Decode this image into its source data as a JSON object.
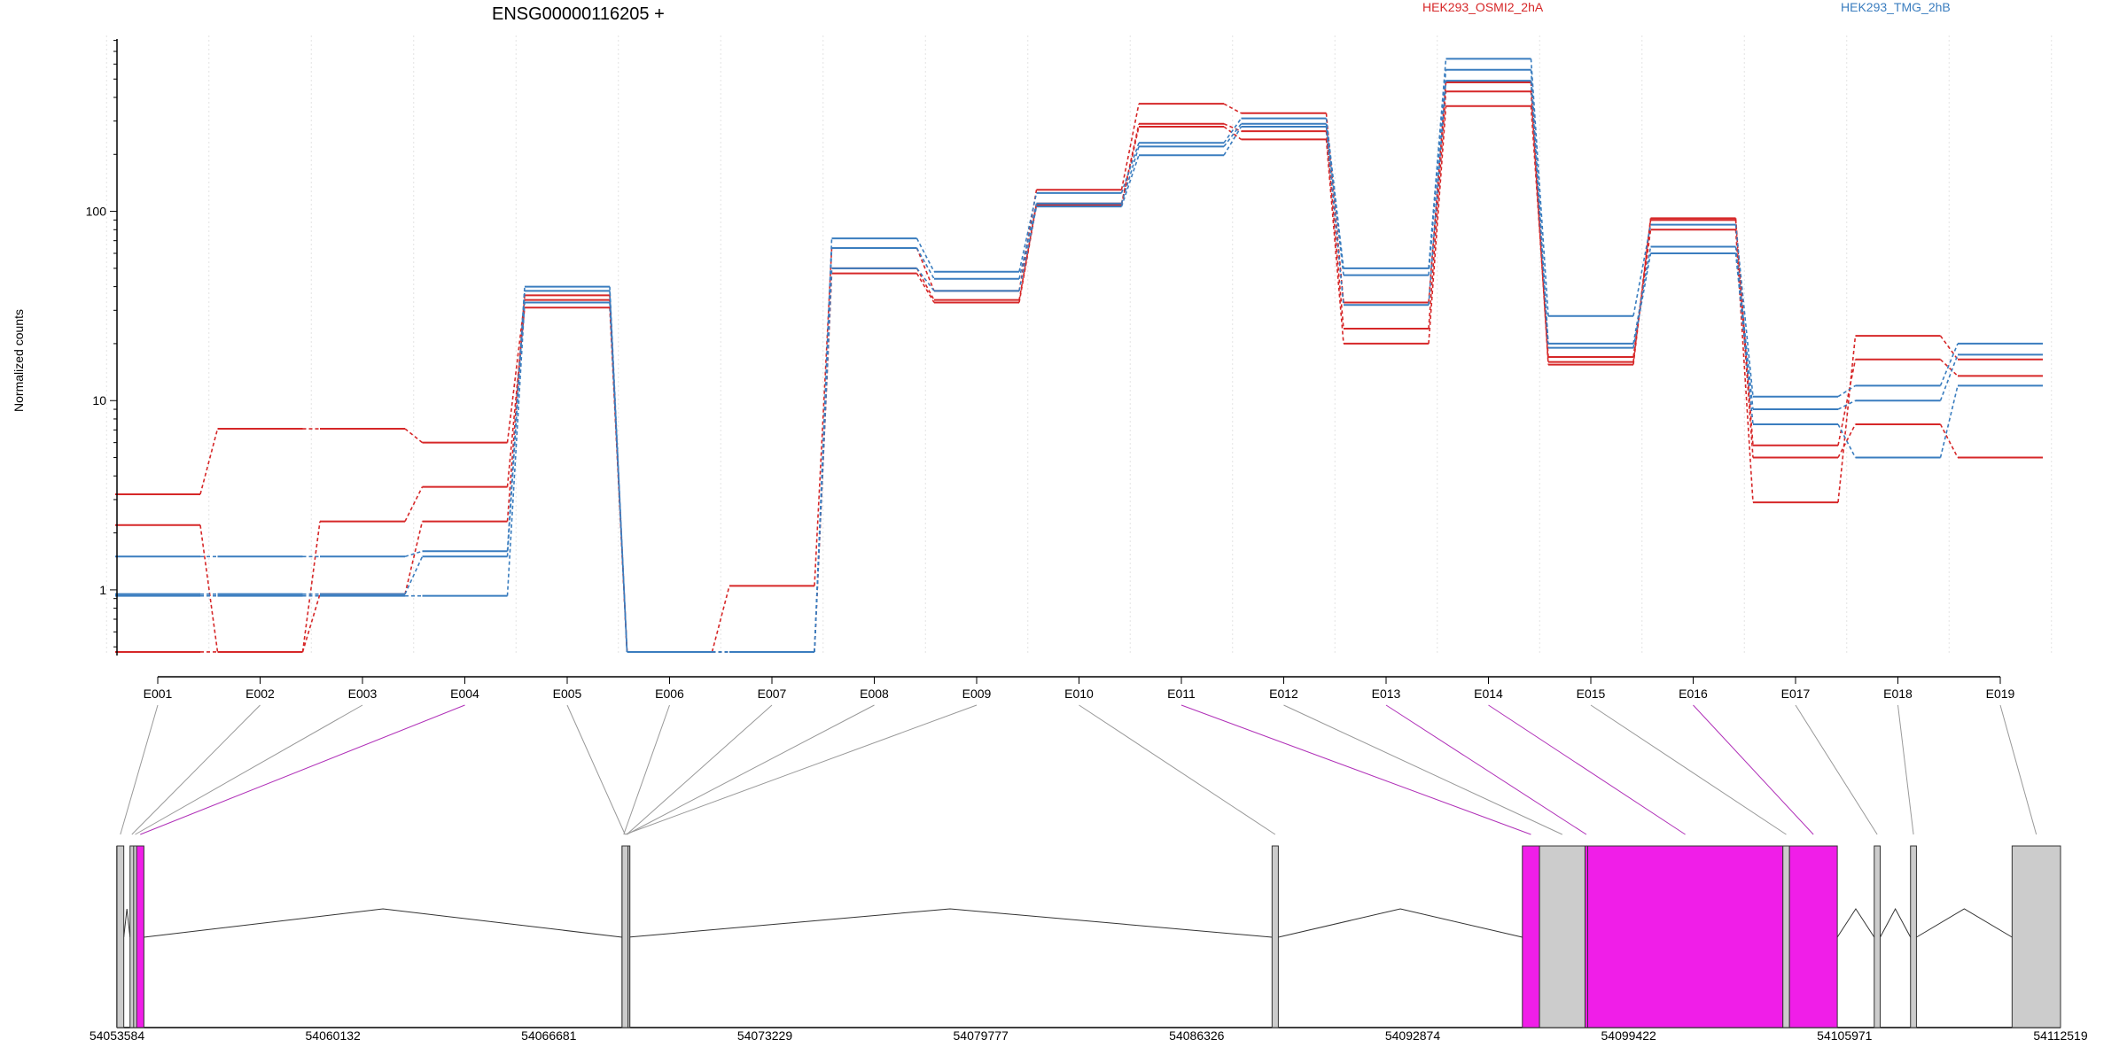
{
  "chart_data": {
    "type": "line",
    "title": "ENSG00000116205 +",
    "ylabel": "Normalized counts",
    "xlabel": "",
    "y_scale": "log",
    "ylim": [
      0.45,
      850
    ],
    "y_ticks": [
      {
        "value": 1,
        "label": "1"
      },
      {
        "value": 10,
        "label": "10"
      },
      {
        "value": 100,
        "label": "100"
      }
    ],
    "grid": "vertical dotted lines at bin boundaries",
    "legend_placement": "top",
    "legend": [
      {
        "label": "HEK293_OSMI2_2hA",
        "color": "#d62728"
      },
      {
        "label": "HEK293_TMG_2hB",
        "color": "#3a7dbf"
      }
    ],
    "categories": [
      "E001",
      "E002",
      "E003",
      "E004",
      "E005",
      "E006",
      "E007",
      "E008",
      "E009",
      "E010",
      "E011",
      "E012",
      "E013",
      "E014",
      "E015",
      "E016",
      "E017",
      "E018",
      "E019"
    ],
    "series": [
      {
        "group": "HEK293_OSMI2_2hA",
        "color": "#d62728",
        "values": [
          3.2,
          7.1,
          7.1,
          6.0,
          34,
          0.47,
          1.05,
          64,
          38,
          130,
          370,
          330,
          33,
          480,
          16,
          92,
          5.8,
          16.5,
          13.5
        ]
      },
      {
        "group": "HEK293_OSMI2_2hA",
        "color": "#d62728",
        "values": [
          2.2,
          0.47,
          2.3,
          3.5,
          31,
          0.47,
          0.47,
          50,
          34,
          110,
          290,
          265,
          24,
          430,
          15.5,
          90,
          5.0,
          7.5,
          5.0
        ]
      },
      {
        "group": "HEK293_OSMI2_2hA",
        "color": "#d62728",
        "values": [
          0.47,
          0.47,
          0.95,
          2.3,
          36,
          0.47,
          0.47,
          47,
          33,
          108,
          280,
          240,
          20,
          360,
          17,
          80,
          2.9,
          22,
          16.5
        ]
      },
      {
        "group": "HEK293_TMG_2hB",
        "color": "#3a7dbf",
        "values": [
          1.5,
          1.5,
          1.5,
          1.6,
          40,
          0.47,
          0.47,
          72,
          48,
          125,
          230,
          310,
          50,
          640,
          28,
          85,
          10.5,
          12,
          20
        ]
      },
      {
        "group": "HEK293_TMG_2hB",
        "color": "#3a7dbf",
        "values": [
          0.95,
          0.95,
          0.95,
          1.5,
          38,
          0.47,
          0.47,
          64,
          44,
          110,
          220,
          290,
          46,
          560,
          20,
          65,
          9.0,
          10,
          17.5
        ]
      },
      {
        "group": "HEK293_TMG_2hB",
        "color": "#3a7dbf",
        "values": [
          0.93,
          0.93,
          0.93,
          0.93,
          33,
          0.47,
          0.47,
          50,
          38,
          106,
          198,
          280,
          32,
          490,
          19,
          60,
          7.5,
          5.0,
          12
        ]
      }
    ],
    "gene_model": {
      "coordinate_labels": [
        "54053584",
        "54060132",
        "54066681",
        "54073229",
        "54079777",
        "54086326",
        "54092874",
        "54099422",
        "54105971",
        "54112519"
      ],
      "coordinate_range": [
        54053584,
        54112519
      ],
      "bin_colors": {
        "normal": "#cccccc",
        "highlighted": "#f01ee8"
      },
      "highlighted_bins": [
        "E004",
        "E011",
        "E013",
        "E014",
        "E016"
      ],
      "exons": [
        {
          "bin": "E001",
          "start": 54053584,
          "end": 54053790,
          "highlight": false
        },
        {
          "bin": "E002",
          "start": 54053980,
          "end": 54054090,
          "highlight": false
        },
        {
          "bin": "E003",
          "start": 54054090,
          "end": 54054180,
          "highlight": false
        },
        {
          "bin": "E004",
          "start": 54054180,
          "end": 54054400,
          "highlight": true
        },
        {
          "bin": "E005",
          "start": 54068900,
          "end": 54069080,
          "highlight": false
        },
        {
          "bin": "E006",
          "start": 54068900,
          "end": 54069000,
          "highlight": false
        },
        {
          "bin": "E007",
          "start": 54069000,
          "end": 54069080,
          "highlight": false
        },
        {
          "bin": "E008",
          "start": 54069000,
          "end": 54069080,
          "highlight": false
        },
        {
          "bin": "E009",
          "start": 54068900,
          "end": 54069080,
          "highlight": false
        },
        {
          "bin": "E010",
          "start": 54088610,
          "end": 54088800,
          "highlight": false
        },
        {
          "bin": "E011",
          "start": 54096200,
          "end": 54096720,
          "highlight": true
        },
        {
          "bin": "E012",
          "start": 54096720,
          "end": 54098100,
          "highlight": false
        },
        {
          "bin": "E013",
          "start": 54098100,
          "end": 54098180,
          "highlight": true
        },
        {
          "bin": "E014",
          "start": 54098180,
          "end": 54104100,
          "highlight": true
        },
        {
          "bin": "E015",
          "start": 54104100,
          "end": 54104300,
          "highlight": false
        },
        {
          "bin": "E016",
          "start": 54104300,
          "end": 54105750,
          "highlight": true
        },
        {
          "bin": "E017",
          "start": 54106870,
          "end": 54107050,
          "highlight": false
        },
        {
          "bin": "E018",
          "start": 54107970,
          "end": 54108150,
          "highlight": false
        },
        {
          "bin": "E019",
          "start": 54111050,
          "end": 54112519,
          "highlight": false
        }
      ],
      "introns": [
        [
          54053790,
          54053980
        ],
        [
          54054400,
          54068900
        ],
        [
          54069080,
          54088610
        ],
        [
          54088800,
          54096200
        ],
        [
          54105750,
          54106870
        ],
        [
          54107050,
          54107970
        ],
        [
          54108150,
          54111050
        ]
      ]
    }
  }
}
